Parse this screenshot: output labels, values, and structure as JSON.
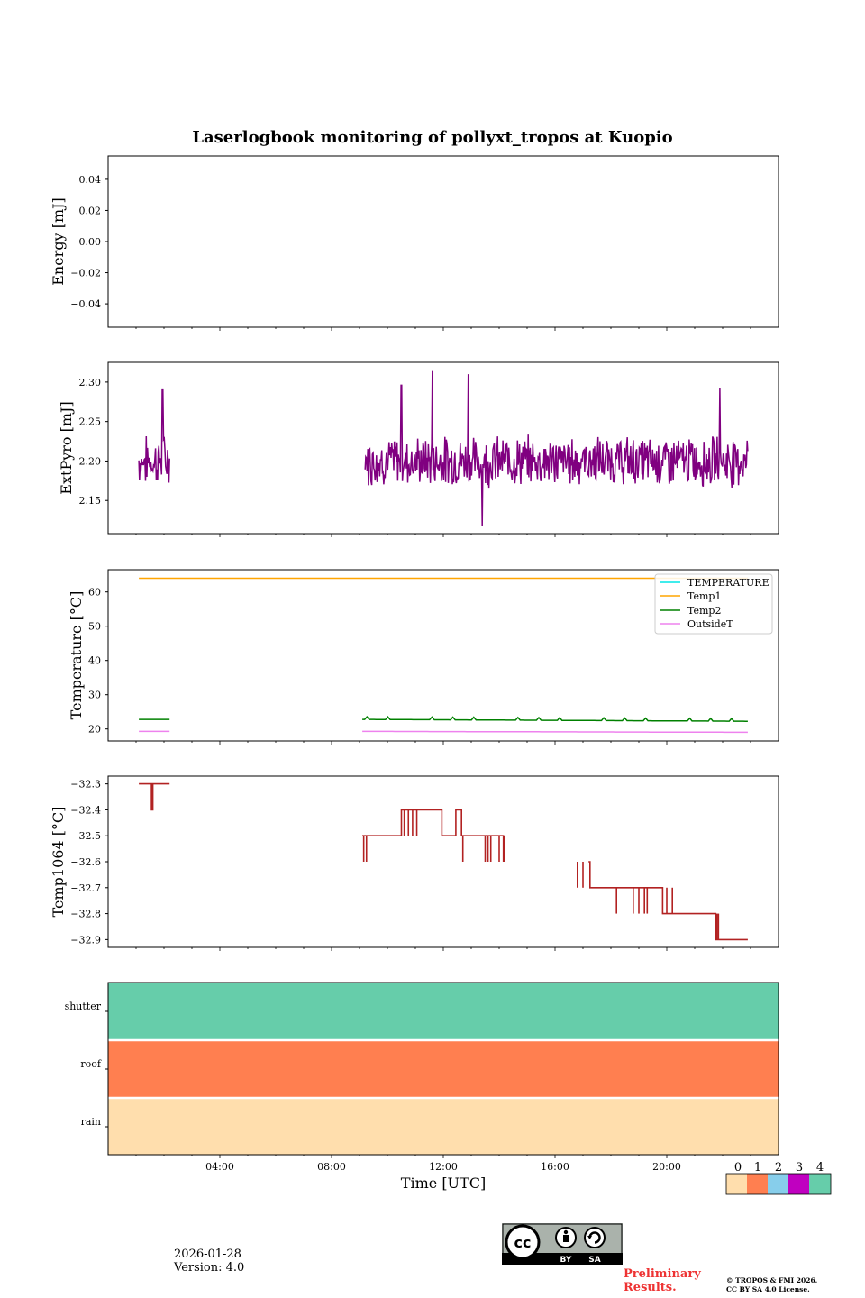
{
  "title": "Laserlogbook monitoring of pollyxt_tropos at Kuopio",
  "x_axis": {
    "label": "Time [UTC]",
    "ticks": [
      "04:00",
      "08:00",
      "12:00",
      "16:00",
      "20:00"
    ],
    "range_hours": [
      0,
      24
    ]
  },
  "chart_data": [
    {
      "type": "line",
      "panel": "energy",
      "ylabel": "Energy [mJ]",
      "ylim": [
        -0.055,
        0.055
      ],
      "yticks": [
        "0.04",
        "0.02",
        "0.00",
        "−0.02",
        "−0.04"
      ],
      "yvals": [
        0.04,
        0.02,
        0.0,
        -0.02,
        -0.04
      ],
      "series": []
    },
    {
      "type": "line",
      "panel": "extpyro",
      "ylabel": "ExtPyro [mJ]",
      "ylim": [
        2.108,
        2.325
      ],
      "yticks": [
        "2.30",
        "2.25",
        "2.20",
        "2.15"
      ],
      "yvals": [
        2.3,
        2.25,
        2.2,
        2.15
      ],
      "color": "#800080",
      "segments": [
        [
          1.1,
          2.2
        ],
        [
          9.2,
          22.9
        ]
      ],
      "mean": 2.2,
      "spread": 0.025,
      "peaks": [
        [
          1.95,
          2.29
        ],
        [
          10.5,
          2.296
        ],
        [
          11.6,
          2.314
        ],
        [
          12.9,
          2.31
        ],
        [
          13.4,
          2.118
        ],
        [
          21.9,
          2.293
        ]
      ]
    },
    {
      "type": "line",
      "panel": "temperature",
      "ylabel": "Temperature [°C]",
      "ylim": [
        16.5,
        66.5
      ],
      "yticks": [
        "60",
        "50",
        "40",
        "30",
        "20"
      ],
      "yvals": [
        60,
        50,
        40,
        30,
        20
      ],
      "legend": {
        "position": "upper right",
        "entries": [
          {
            "name": "TEMPERATURE",
            "color": "#00e5e5"
          },
          {
            "name": "Temp1",
            "color": "#ffa500"
          },
          {
            "name": "Temp2",
            "color": "#008000"
          },
          {
            "name": "OutsideT",
            "color": "#ee82ee"
          }
        ]
      },
      "series": [
        {
          "name": "Temp1",
          "color": "#ffa500",
          "segments": [
            [
              1.1,
              22.9
            ]
          ],
          "value": 64.0
        },
        {
          "name": "Temp2",
          "color": "#008000",
          "segments": [
            [
              1.1,
              2.2
            ],
            [
              9.1,
              22.9
            ]
          ],
          "value": 22.8
        },
        {
          "name": "OutsideT",
          "color": "#ee82ee",
          "segments": [
            [
              1.1,
              2.2
            ],
            [
              9.1,
              22.9
            ]
          ],
          "value": 19.3
        }
      ]
    },
    {
      "type": "line",
      "panel": "temp1064",
      "ylabel": "Temp1064 [°C]",
      "ylim": [
        -32.93,
        -32.27
      ],
      "yticks": [
        "−32.3",
        "−32.4",
        "−32.5",
        "−32.6",
        "−32.7",
        "−32.8",
        "−32.9"
      ],
      "yvals": [
        -32.3,
        -32.4,
        -32.5,
        -32.6,
        -32.7,
        -32.8,
        -32.9
      ],
      "color": "#b22222",
      "steps": [
        [
          1.1,
          -32.3
        ],
        [
          1.5,
          -32.3
        ],
        [
          1.55,
          -32.4
        ],
        [
          1.6,
          -32.3
        ],
        [
          2.2,
          -32.3
        ],
        [
          9.1,
          -32.5
        ],
        [
          10.4,
          -32.5
        ],
        [
          10.5,
          -32.4
        ],
        [
          11.9,
          -32.4
        ],
        [
          11.95,
          -32.5
        ],
        [
          12.4,
          -32.5
        ],
        [
          12.45,
          -32.4
        ],
        [
          12.6,
          -32.4
        ],
        [
          12.65,
          -32.5
        ],
        [
          14.1,
          -32.5
        ],
        [
          14.15,
          -32.6
        ],
        [
          17.2,
          -32.6
        ],
        [
          17.25,
          -32.7
        ],
        [
          19.8,
          -32.7
        ],
        [
          19.85,
          -32.8
        ],
        [
          21.7,
          -32.8
        ],
        [
          21.75,
          -32.9
        ],
        [
          22.9,
          -32.9
        ]
      ]
    },
    {
      "type": "heatmap",
      "panel": "flags",
      "rows": [
        {
          "label": "shutter",
          "value": 4
        },
        {
          "label": "roof",
          "value": 1
        },
        {
          "label": "rain",
          "value": 0
        }
      ],
      "colorbar": {
        "ticks": [
          "0",
          "1",
          "2",
          "3",
          "4"
        ],
        "colors": [
          "#ffdead",
          "#ff7f50",
          "#87ceeb",
          "#c000c0",
          "#66cdaa"
        ]
      }
    }
  ],
  "footer": {
    "date": "2026-01-28",
    "version": "Version: 4.0",
    "preliminary_1": "Preliminary",
    "preliminary_2": "Results.",
    "copyright_1": "© TROPOS & FMI 2026.",
    "copyright_2": "CC BY SA 4.0 License.",
    "cc_badge": "cc",
    "cc_by": "BY",
    "cc_sa": "SA"
  }
}
